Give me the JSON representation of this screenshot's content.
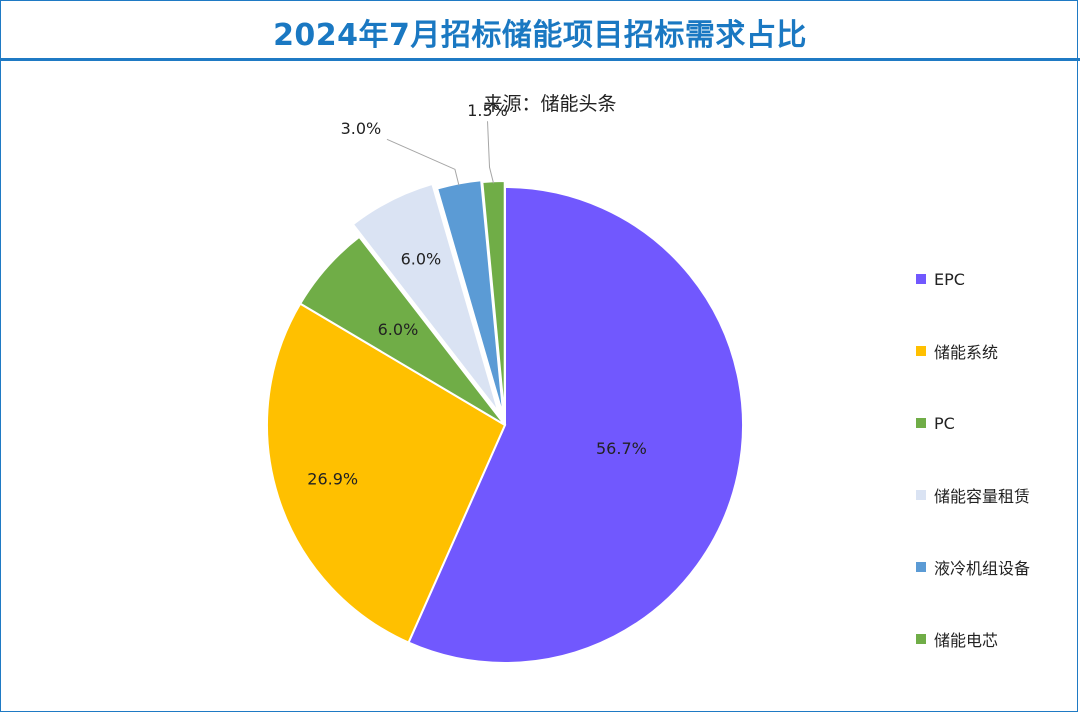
{
  "chart_data": {
    "type": "pie",
    "title": "2024年7月招标储能项目招标需求占比",
    "subtitle": "来源：储能头条",
    "slices": [
      {
        "name": "EPC",
        "value": 56.7,
        "label": "56.7%",
        "color": "#7158fe"
      },
      {
        "name": "储能系统",
        "value": 26.9,
        "label": "26.9%",
        "color": "#ffc000"
      },
      {
        "name": "PC",
        "value": 6.0,
        "label": "6.0%",
        "color": "#70ad47"
      },
      {
        "name": "储能容量租赁",
        "value": 6.0,
        "label": "6.0%",
        "color": "#dae3f3"
      },
      {
        "name": "液冷机组设备",
        "value": 3.0,
        "label": "3.0%",
        "color": "#5b9bd5"
      },
      {
        "name": "储能电芯",
        "value": 1.5,
        "label": "1.5%",
        "color": "#70ad47"
      }
    ],
    "legend_position": "right"
  }
}
